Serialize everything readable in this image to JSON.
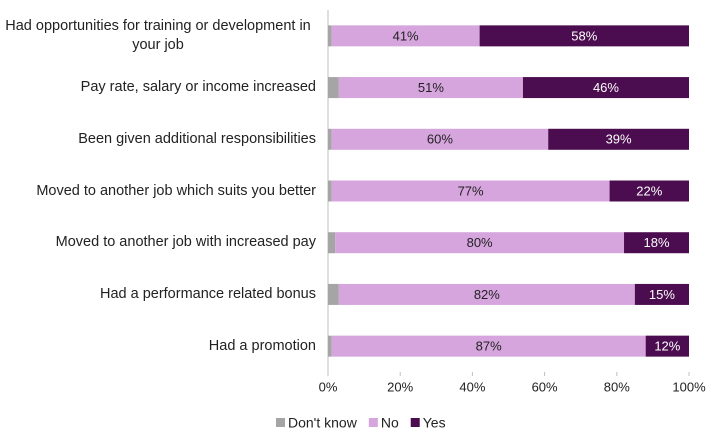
{
  "chart_data": {
    "type": "stacked-bar-horizontal",
    "categories": [
      "Had opportunities for training or development in your job",
      "Pay rate, salary or income increased",
      "Been given additional responsibilities",
      "Moved to another job which suits you better",
      "Moved to another job with increased pay",
      "Had a performance related bonus",
      "Had a promotion"
    ],
    "series": [
      {
        "name": "Don't know",
        "color": "#a5a5a5",
        "values": [
          1,
          3,
          1,
          1,
          2,
          3,
          1
        ]
      },
      {
        "name": "No",
        "color": "#d6a5de",
        "values": [
          41,
          51,
          60,
          77,
          80,
          82,
          87
        ],
        "value_labels": [
          "41%",
          "51%",
          "60%",
          "77%",
          "80%",
          "82%",
          "87%"
        ]
      },
      {
        "name": "Yes",
        "color": "#4b0d4f",
        "values": [
          58,
          46,
          39,
          22,
          18,
          15,
          12
        ],
        "value_labels": [
          "58%",
          "46%",
          "39%",
          "22%",
          "18%",
          "15%",
          "12%"
        ]
      }
    ],
    "xlim": [
      0,
      100
    ],
    "xticks": [
      {
        "value": 0,
        "label": "0%"
      },
      {
        "value": 20,
        "label": "20%"
      },
      {
        "value": 40,
        "label": "40%"
      },
      {
        "value": 60,
        "label": "60%"
      },
      {
        "value": 80,
        "label": "80%"
      },
      {
        "value": 100,
        "label": "100%"
      }
    ],
    "legend": "bottom"
  }
}
